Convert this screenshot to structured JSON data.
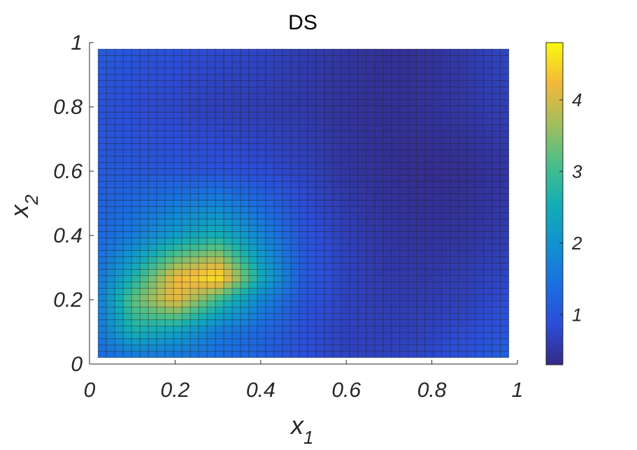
{
  "chart_data": {
    "type": "heatmap",
    "title": "DS",
    "xlabel": {
      "base": "x",
      "subscript": "1"
    },
    "ylabel": {
      "base": "x",
      "subscript": "2"
    },
    "xlim": [
      0,
      1
    ],
    "ylim": [
      0,
      1
    ],
    "x_ticks": [
      0,
      0.2,
      0.4,
      0.6,
      0.8,
      1
    ],
    "y_ticks": [
      0,
      0.2,
      0.4,
      0.6,
      0.8,
      1
    ],
    "x_tick_labels": [
      "0",
      "0.2",
      "0.4",
      "0.6",
      "0.8",
      "1"
    ],
    "y_tick_labels": [
      "0",
      "0.2",
      "0.4",
      "0.6",
      "0.8",
      "1"
    ],
    "grid_x_range": [
      0.02,
      0.98
    ],
    "grid_y_range": [
      0.02,
      0.98
    ],
    "grid_cols": 49,
    "grid_rows": 49,
    "colorbar": {
      "colormap": "parula",
      "range": [
        0.3,
        4.8
      ],
      "ticks": [
        1,
        2,
        3,
        4
      ],
      "tick_labels": [
        "1",
        "2",
        "3",
        "4"
      ]
    },
    "peak": {
      "x": 0.26,
      "y": 0.27,
      "value": 4.8
    },
    "minimum_region": {
      "x": [
        0.6,
        0.8
      ],
      "y": [
        0.6,
        1.0
      ],
      "value": 0.35
    },
    "z_rows_sampled_at_x": [
      0.02,
      0.1,
      0.2,
      0.3,
      0.4,
      0.5,
      0.6,
      0.7,
      0.8,
      0.9,
      0.98
    ],
    "z_rows": [
      {
        "y": 0.98,
        "values": [
          1.1,
          1.0,
          0.9,
          0.8,
          0.75,
          0.6,
          0.5,
          0.4,
          0.45,
          0.6,
          0.75
        ]
      },
      {
        "y": 0.8,
        "values": [
          0.95,
          0.85,
          0.75,
          0.65,
          0.6,
          0.55,
          0.45,
          0.4,
          0.45,
          0.55,
          0.65
        ]
      },
      {
        "y": 0.6,
        "values": [
          1.1,
          1.05,
          1.0,
          0.95,
          0.85,
          0.7,
          0.5,
          0.4,
          0.35,
          0.4,
          0.5
        ]
      },
      {
        "y": 0.4,
        "values": [
          1.3,
          1.6,
          2.2,
          2.6,
          1.8,
          1.0,
          0.65,
          0.5,
          0.45,
          0.5,
          0.6
        ]
      },
      {
        "y": 0.27,
        "values": [
          1.5,
          2.6,
          4.2,
          4.7,
          2.5,
          1.1,
          0.7,
          0.55,
          0.55,
          0.65,
          0.75
        ]
      },
      {
        "y": 0.2,
        "values": [
          1.6,
          3.2,
          4.2,
          3.0,
          1.8,
          1.0,
          0.7,
          0.6,
          0.6,
          0.7,
          0.85
        ]
      },
      {
        "y": 0.1,
        "values": [
          1.5,
          2.6,
          2.3,
          1.6,
          1.3,
          0.9,
          0.7,
          0.65,
          0.7,
          0.85,
          1.0
        ]
      },
      {
        "y": 0.02,
        "values": [
          1.3,
          1.5,
          1.5,
          1.4,
          1.2,
          0.9,
          0.7,
          0.7,
          0.8,
          1.0,
          1.2
        ]
      }
    ]
  }
}
